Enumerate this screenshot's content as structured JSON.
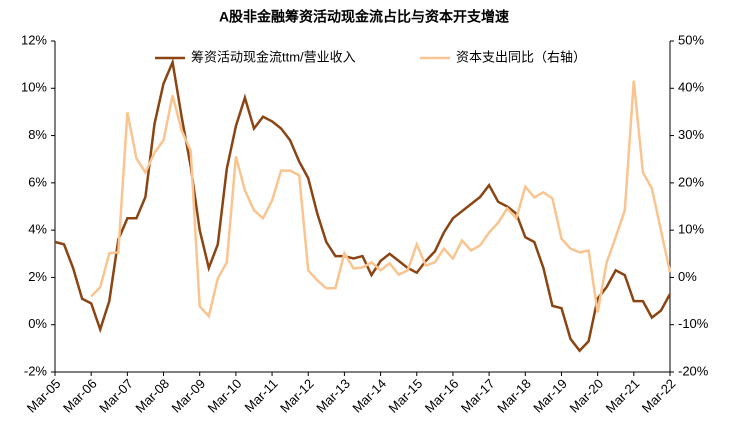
{
  "chart_data": {
    "type": "line",
    "title": "A股非金融筹资活动现金流占比与资本开支增速",
    "categories": [
      "Mar-05",
      null,
      null,
      null,
      "Mar-06",
      null,
      null,
      null,
      "Mar-07",
      null,
      null,
      null,
      "Mar-08",
      null,
      null,
      null,
      "Mar-09",
      null,
      null,
      null,
      "Mar-10",
      null,
      null,
      null,
      "Mar-11",
      null,
      null,
      null,
      "Mar-12",
      null,
      null,
      null,
      "Mar-13",
      null,
      null,
      null,
      "Mar-14",
      null,
      null,
      null,
      "Mar-15",
      null,
      null,
      null,
      "Mar-16",
      null,
      null,
      null,
      "Mar-17",
      null,
      null,
      null,
      "Mar-18",
      null,
      null,
      null,
      "Mar-19",
      null,
      null,
      null,
      "Mar-20",
      null,
      null,
      null,
      "Mar-21",
      null,
      null,
      null,
      "Mar-22"
    ],
    "series": [
      {
        "name": "筹资活动现金流ttm/营业收入",
        "color": "#8b4513",
        "axis": "y",
        "values": [
          3.5,
          3.4,
          2.4,
          1.1,
          0.9,
          -0.2,
          1.0,
          3.6,
          4.5,
          4.5,
          5.4,
          8.5,
          10.2,
          11.1,
          8.8,
          6.7,
          4.0,
          2.4,
          3.4,
          6.6,
          8.4,
          9.6,
          8.3,
          8.8,
          8.6,
          8.3,
          7.8,
          6.9,
          6.2,
          4.7,
          3.5,
          2.9,
          2.9,
          2.8,
          2.9,
          2.1,
          2.7,
          3.0,
          2.7,
          2.4,
          2.2,
          2.7,
          3.1,
          3.9,
          4.5,
          4.8,
          5.1,
          5.4,
          5.9,
          5.2,
          5.0,
          4.7,
          3.7,
          3.5,
          2.4,
          0.8,
          0.7,
          -0.6,
          -1.1,
          -0.7,
          1.1,
          1.6,
          2.3,
          2.1,
          1.0,
          1.0,
          0.3,
          0.6,
          1.3
        ]
      },
      {
        "name": "资本支出同比（右轴）",
        "color": "#f9c48f",
        "axis": "y2",
        "values": [
          null,
          null,
          null,
          null,
          -4.0,
          -2.1,
          5.1,
          5.3,
          34.9,
          25.2,
          22.2,
          26.4,
          29.0,
          38.5,
          31.1,
          26.8,
          -6.1,
          -8.2,
          -0.2,
          3.2,
          25.6,
          18.4,
          14.2,
          12.5,
          16.3,
          22.6,
          22.6,
          21.6,
          1.5,
          -0.6,
          -2.3,
          -2.3,
          5.1,
          1.9,
          2.1,
          3.2,
          1.5,
          3.0,
          0.6,
          1.5,
          7.0,
          2.5,
          3.2,
          6.1,
          4.0,
          7.8,
          5.7,
          6.8,
          9.5,
          11.6,
          14.6,
          12.5,
          19.2,
          16.9,
          18.0,
          16.7,
          8.2,
          6.1,
          5.3,
          5.7,
          -7.4,
          3.2,
          8.5,
          14.2,
          41.6,
          22.2,
          18.8,
          9.9,
          1.1
        ]
      }
    ],
    "ylim": [
      -2,
      12
    ],
    "yticks": [
      {
        "value": -2,
        "label": "-2%"
      },
      {
        "value": 0,
        "label": "0%"
      },
      {
        "value": 2,
        "label": "2%"
      },
      {
        "value": 4,
        "label": "4%"
      },
      {
        "value": 6,
        "label": "6%"
      },
      {
        "value": 8,
        "label": "8%"
      },
      {
        "value": 10,
        "label": "10%"
      },
      {
        "value": 12,
        "label": "12%"
      }
    ],
    "y2lim": [
      -20,
      50
    ],
    "y2ticks": [
      {
        "value": -20,
        "label": "-20%"
      },
      {
        "value": -10,
        "label": "-10%"
      },
      {
        "value": 0,
        "label": "0%"
      },
      {
        "value": 10,
        "label": "10%"
      },
      {
        "value": 20,
        "label": "20%"
      },
      {
        "value": 30,
        "label": "30%"
      },
      {
        "value": 40,
        "label": "40%"
      },
      {
        "value": 50,
        "label": "50%"
      }
    ],
    "grid": false,
    "legend": "top"
  }
}
